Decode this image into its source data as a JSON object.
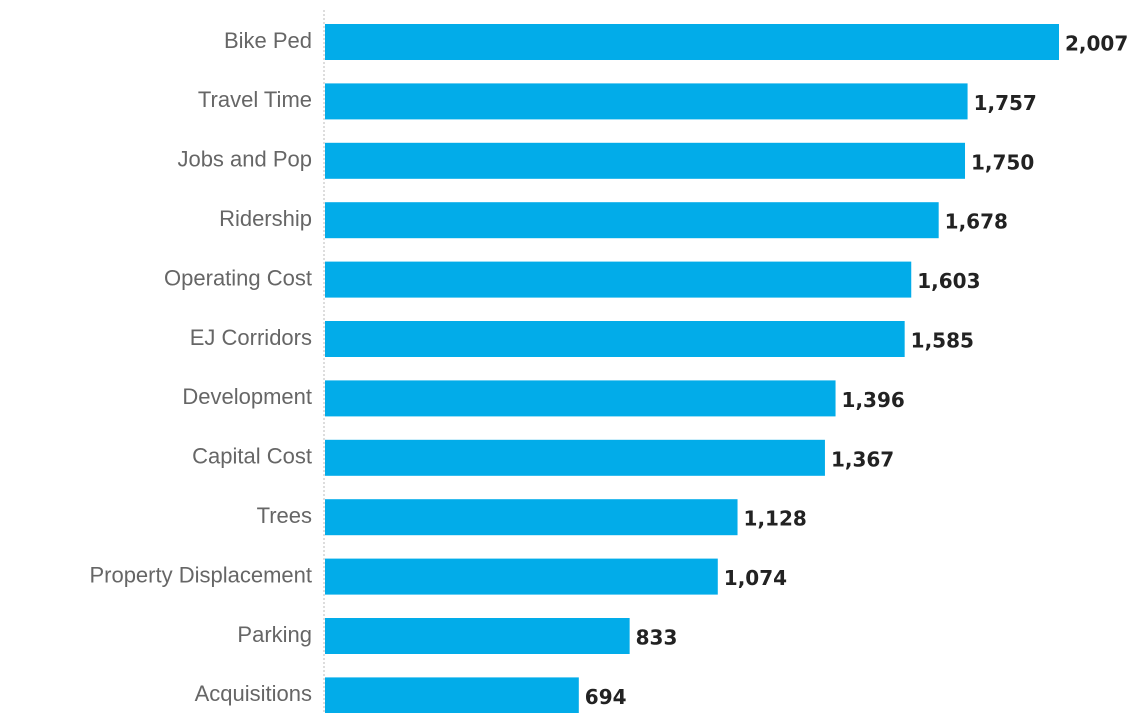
{
  "chart_data": {
    "type": "bar",
    "orientation": "horizontal",
    "categories": [
      "Bike Ped",
      "Travel Time",
      "Jobs and Pop",
      "Ridership",
      "Operating Cost",
      "EJ Corridors",
      "Development",
      "Capital Cost",
      "Trees",
      "Property Displacement",
      "Parking",
      "Acquisitions"
    ],
    "values": [
      2007,
      1757,
      1750,
      1678,
      1603,
      1585,
      1396,
      1367,
      1128,
      1074,
      833,
      694
    ],
    "value_labels": [
      "2,007",
      "1,757",
      "1,750",
      "1,678",
      "1,603",
      "1,585",
      "1,396",
      "1,367",
      "1,128",
      "1,074",
      "833",
      "694"
    ],
    "color": "#02ace9"
  }
}
